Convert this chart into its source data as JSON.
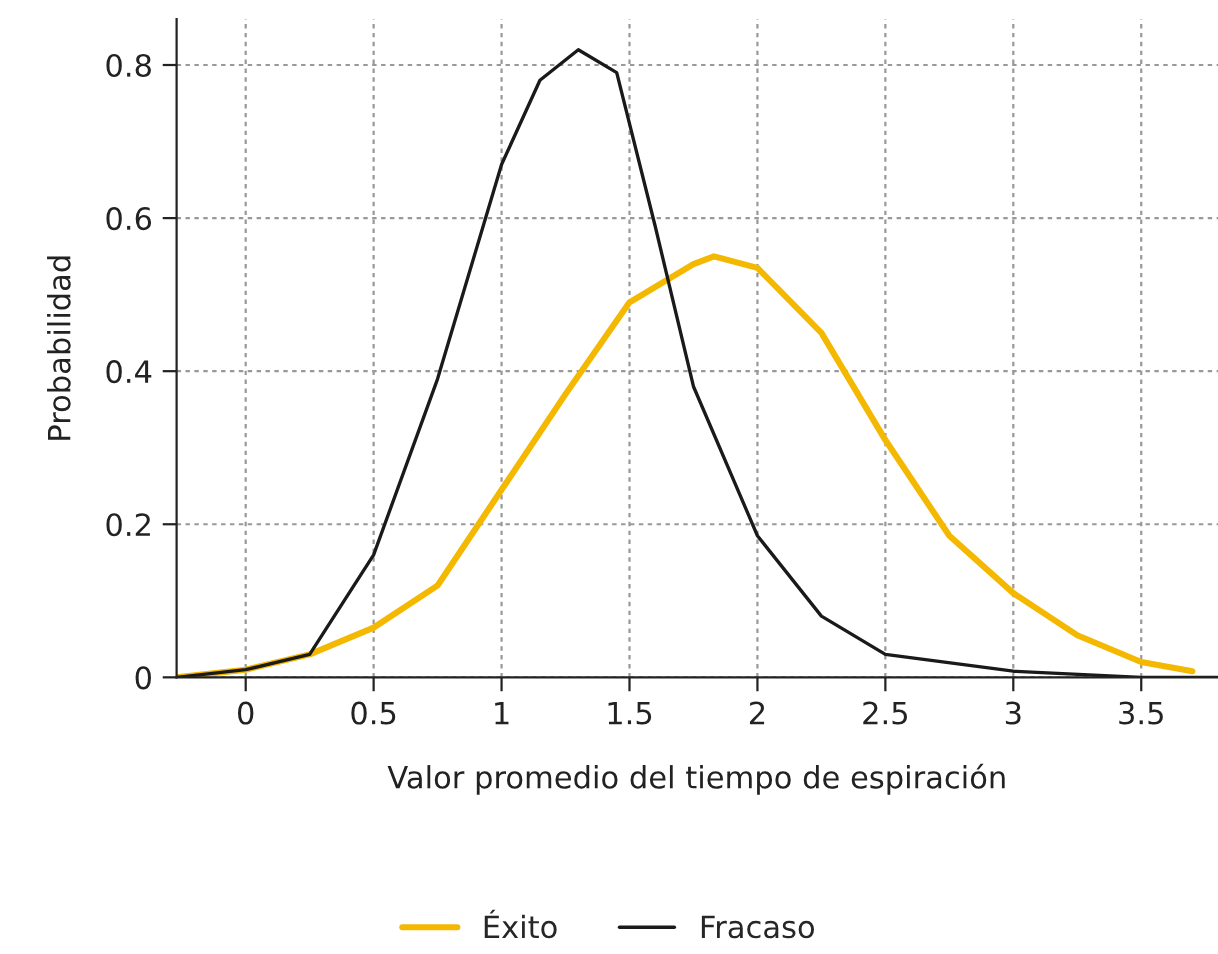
{
  "chart_data": {
    "type": "line",
    "xlabel": "Valor promedio del tiempo de espiración",
    "ylabel": "Probabilidad",
    "xlim": [
      -0.27,
      3.8
    ],
    "ylim": [
      0,
      0.86
    ],
    "xticks": [
      0,
      0.5,
      1,
      1.5,
      2,
      2.5,
      3,
      3.5
    ],
    "yticks": [
      0,
      0.2,
      0.4,
      0.6,
      0.8
    ],
    "grid": true,
    "legend": "bottom",
    "marker": "none",
    "line_style": "solid",
    "series": [
      {
        "name": "Éxito",
        "color": "#f5b800",
        "x": [
          -0.27,
          0,
          0.25,
          0.5,
          0.75,
          1.0,
          1.25,
          1.5,
          1.75,
          1.83,
          2.0,
          2.25,
          2.5,
          2.75,
          3.0,
          3.25,
          3.5,
          3.7
        ],
        "values": [
          0,
          0.01,
          0.03,
          0.065,
          0.12,
          0.245,
          0.37,
          0.49,
          0.54,
          0.55,
          0.535,
          0.45,
          0.31,
          0.185,
          0.11,
          0.055,
          0.02,
          0.008
        ]
      },
      {
        "name": "Fracaso",
        "color": "#1a1a1a",
        "x": [
          -0.27,
          0,
          0.25,
          0.5,
          0.75,
          1.0,
          1.15,
          1.3,
          1.45,
          1.6,
          1.75,
          2.0,
          2.25,
          2.5,
          3.0,
          3.5,
          3.8
        ],
        "values": [
          0,
          0.01,
          0.03,
          0.16,
          0.39,
          0.67,
          0.78,
          0.82,
          0.79,
          0.59,
          0.38,
          0.185,
          0.08,
          0.03,
          0.008,
          0,
          0
        ]
      }
    ]
  }
}
